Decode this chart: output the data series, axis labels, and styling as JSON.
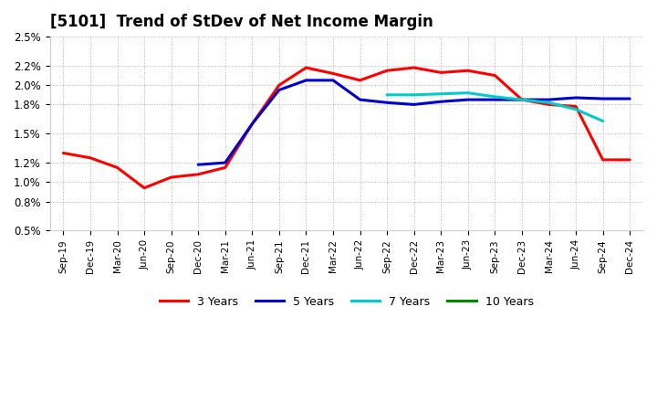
{
  "title": "[5101]  Trend of StDev of Net Income Margin",
  "title_fontsize": 12,
  "ylim": [
    0.005,
    0.025
  ],
  "yticks": [
    0.005,
    0.008,
    0.01,
    0.012,
    0.015,
    0.018,
    0.02,
    0.022,
    0.025
  ],
  "ytick_labels": [
    "0.5%",
    "0.8%",
    "1.0%",
    "1.2%",
    "1.5%",
    "1.8%",
    "2.0%",
    "2.2%",
    "2.5%"
  ],
  "background_color": "#ffffff",
  "plot_bg_color": "#ffffff",
  "grid_color": "#aaaaaa",
  "xtick_labels": [
    "Sep-19",
    "Dec-19",
    "Mar-20",
    "Jun-20",
    "Sep-20",
    "Dec-20",
    "Mar-21",
    "Jun-21",
    "Sep-21",
    "Dec-21",
    "Mar-22",
    "Jun-22",
    "Sep-22",
    "Dec-22",
    "Mar-23",
    "Jun-23",
    "Sep-23",
    "Dec-23",
    "Mar-24",
    "Jun-24",
    "Sep-24",
    "Dec-24"
  ],
  "series": [
    {
      "color": "#ff0000",
      "label": "3 Years",
      "indices": [
        0,
        1,
        2,
        3,
        4,
        5,
        6,
        7,
        8,
        9,
        10,
        11,
        12,
        13,
        14,
        15,
        16,
        17,
        18,
        19,
        20,
        21
      ],
      "values": [
        0.013,
        0.0125,
        0.0115,
        0.0094,
        0.0105,
        0.0108,
        0.0115,
        0.016,
        0.02,
        0.0218,
        0.0212,
        0.0205,
        0.0215,
        0.0218,
        0.0213,
        0.0215,
        0.021,
        0.0185,
        0.018,
        0.0178,
        0.0123,
        0.0123
      ]
    },
    {
      "color": "#0000cc",
      "label": "5 Years",
      "indices": [
        5,
        6,
        7,
        8,
        9,
        10,
        11,
        12,
        13,
        14,
        15,
        16,
        17,
        18,
        19,
        20,
        21
      ],
      "values": [
        0.0118,
        0.012,
        0.016,
        0.0195,
        0.0205,
        0.0205,
        0.0185,
        0.0182,
        0.018,
        0.0183,
        0.0185,
        0.0185,
        0.0185,
        0.0185,
        0.0187,
        0.0186,
        0.0186
      ]
    },
    {
      "color": "#00cccc",
      "label": "7 Years",
      "indices": [
        12,
        13,
        14,
        15,
        16,
        17,
        18,
        19,
        20
      ],
      "values": [
        0.019,
        0.019,
        0.0191,
        0.0192,
        0.0188,
        0.0185,
        0.0182,
        0.0175,
        0.0163
      ]
    },
    {
      "color": "#008800",
      "label": "10 Years",
      "indices": [],
      "values": []
    }
  ],
  "legend_items": [
    "3 Years",
    "5 Years",
    "7 Years",
    "10 Years"
  ],
  "legend_colors": [
    "#ff0000",
    "#0000cc",
    "#00cccc",
    "#008800"
  ],
  "linewidth": 2.2
}
